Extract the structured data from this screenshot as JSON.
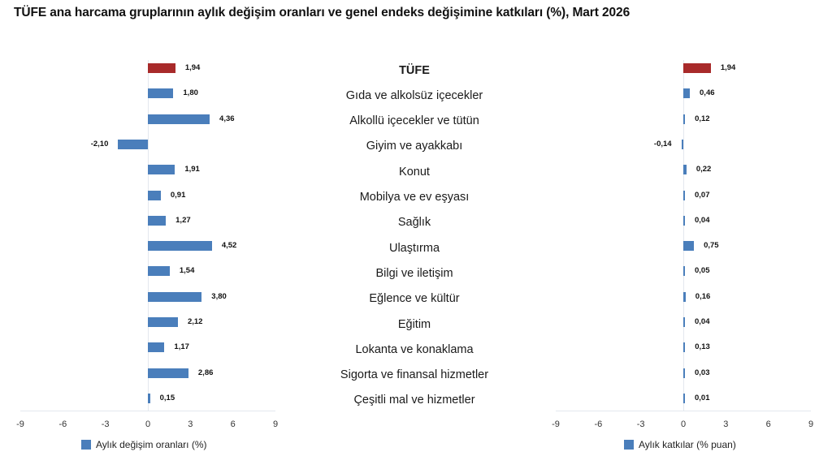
{
  "title": "TÜFE ana harcama gruplarının aylık değişim oranları ve genel endeks değişimine katkıları (%), Mart 2026",
  "colors": {
    "highlight": "#a82a2a",
    "series": "#4a7ebb",
    "axis": "#e3e8ee"
  },
  "categories": [
    "TÜFE",
    "Gıda ve alkolsüz içecekler",
    "Alkollü içecekler ve tütün",
    "Giyim ve ayakkabı",
    "Konut",
    "Mobilya ve ev eşyası",
    "Sağlık",
    "Ulaştırma",
    "Bilgi ve iletişim",
    "Eğlence ve kültür",
    "Eğitim",
    "Lokanta ve konaklama",
    "Sigorta ve finansal hizmetler",
    "Çeşitli mal ve hizmetler"
  ],
  "left_chart": {
    "legend": "Aylık değişim oranları (%)",
    "ticks": [
      "-9",
      "-6",
      "-3",
      "0",
      "3",
      "6",
      "9"
    ],
    "labels": [
      "1,94",
      "1,80",
      "4,36",
      "-2,10",
      "1,91",
      "0,91",
      "1,27",
      "4,52",
      "1,54",
      "3,80",
      "2,12",
      "1,17",
      "2,86",
      "0,15"
    ]
  },
  "right_chart": {
    "legend": "Aylık katkılar (% puan)",
    "ticks": [
      "-9",
      "-6",
      "-3",
      "0",
      "3",
      "6",
      "9"
    ],
    "labels": [
      "1,94",
      "0,46",
      "0,12",
      "-0,14",
      "0,22",
      "0,07",
      "0,04",
      "0,75",
      "0,05",
      "0,16",
      "0,04",
      "0,13",
      "0,03",
      "0,01"
    ]
  },
  "chart_data": [
    {
      "type": "bar",
      "orientation": "horizontal",
      "title": "TÜFE ana harcama gruplarının aylık değişim oranları ve genel endeks değişimine katkıları (%), Mart 2026",
      "categories": [
        "TÜFE",
        "Gıda ve alkolsüz içecekler",
        "Alkollü içecekler ve tütün",
        "Giyim ve ayakkabı",
        "Konut",
        "Mobilya ve ev eşyası",
        "Sağlık",
        "Ulaştırma",
        "Bilgi ve iletişim",
        "Eğlence ve kültür",
        "Eğitim",
        "Lokanta ve konaklama",
        "Sigorta ve finansal hizmetler",
        "Çeşitli mal ve hizmetler"
      ],
      "series": [
        {
          "name": "Aylık değişim oranları (%)",
          "values": [
            1.94,
            1.8,
            4.36,
            -2.1,
            1.91,
            0.91,
            1.27,
            4.52,
            1.54,
            3.8,
            2.12,
            1.17,
            2.86,
            0.15
          ]
        }
      ],
      "xlabel": "",
      "ylabel": "",
      "xlim": [
        -9,
        9
      ],
      "xticks": [
        -9,
        -6,
        -3,
        0,
        3,
        6,
        9
      ],
      "grid": false,
      "legend_position": "bottom",
      "highlight": {
        "category": "TÜFE",
        "color": "#a82a2a"
      }
    },
    {
      "type": "bar",
      "orientation": "horizontal",
      "categories": [
        "TÜFE",
        "Gıda ve alkolsüz içecekler",
        "Alkollü içecekler ve tütün",
        "Giyim ve ayakkabı",
        "Konut",
        "Mobilya ve ev eşyası",
        "Sağlık",
        "Ulaştırma",
        "Bilgi ve iletişim",
        "Eğlence ve kültür",
        "Eğitim",
        "Lokanta ve konaklama",
        "Sigorta ve finansal hizmetler",
        "Çeşitli mal ve hizmetler"
      ],
      "series": [
        {
          "name": "Aylık katkılar (% puan)",
          "values": [
            1.94,
            0.46,
            0.12,
            -0.14,
            0.22,
            0.07,
            0.04,
            0.75,
            0.05,
            0.16,
            0.04,
            0.13,
            0.03,
            0.01
          ]
        }
      ],
      "xlabel": "",
      "ylabel": "",
      "xlim": [
        -9,
        9
      ],
      "xticks": [
        -9,
        -6,
        -3,
        0,
        3,
        6,
        9
      ],
      "grid": false,
      "legend_position": "bottom",
      "highlight": {
        "category": "TÜFE",
        "color": "#a82a2a"
      }
    }
  ]
}
